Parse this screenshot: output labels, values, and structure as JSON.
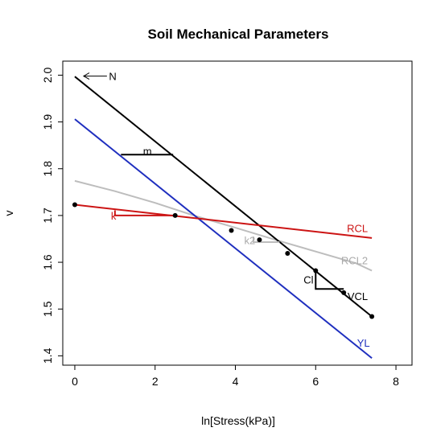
{
  "chart_data": {
    "type": "line",
    "title": "Soil Mechanical Parameters",
    "xlabel": "ln[Stress(kPa)]",
    "ylabel": "v",
    "xlim": [
      -0.3,
      8.4
    ],
    "ylim": [
      1.38,
      2.03
    ],
    "x_ticks": [
      0,
      2,
      4,
      6,
      8
    ],
    "y_ticks": [
      1.4,
      1.5,
      1.6,
      1.7,
      1.8,
      1.9,
      2.0
    ],
    "grid": false,
    "series": [
      {
        "name": "VCL",
        "color": "#000000",
        "x": [
          0,
          7.4
        ],
        "y": [
          1.997,
          1.484
        ]
      },
      {
        "name": "YL",
        "color": "#1f2fbf",
        "x": [
          0,
          7.4
        ],
        "y": [
          1.906,
          1.395
        ]
      },
      {
        "name": "RCL",
        "color": "#cc1414",
        "x": [
          0,
          7.4
        ],
        "y": [
          1.723,
          1.652
        ]
      },
      {
        "name": "RCL2",
        "color": "#bdbdbd",
        "x": [
          0,
          1,
          2,
          3,
          4,
          5,
          6,
          7,
          7.4
        ],
        "y": [
          1.774,
          1.752,
          1.727,
          1.699,
          1.674,
          1.648,
          1.623,
          1.598,
          1.582
        ]
      }
    ],
    "points": {
      "x": [
        0,
        2.5,
        3.9,
        4.6,
        5.3,
        6.0,
        6.7,
        7.4
      ],
      "y": [
        1.723,
        1.7,
        1.668,
        1.648,
        1.619,
        1.582,
        1.535,
        1.484
      ]
    },
    "annotations": [
      {
        "text": "N",
        "x": 0.85,
        "y": 1.998,
        "color": "#000000"
      },
      {
        "text": "m",
        "x": 1.7,
        "y": 1.838,
        "color": "#000000"
      },
      {
        "text": "k",
        "x": 0.9,
        "y": 1.7,
        "color": "#cc1414"
      },
      {
        "text": "k2",
        "x": 4.22,
        "y": 1.647,
        "color": "#aaaaaa"
      },
      {
        "text": "Cl",
        "x": 5.7,
        "y": 1.563,
        "color": "#000000"
      },
      {
        "text": "RCL",
        "x": 7.3,
        "y": 1.673,
        "color": "#cc1414"
      },
      {
        "text": "RCL2",
        "x": 7.3,
        "y": 1.604,
        "color": "#aaaaaa"
      },
      {
        "text": "VCL",
        "x": 7.3,
        "y": 1.528,
        "color": "#000000"
      },
      {
        "text": "YL",
        "x": 7.35,
        "y": 1.428,
        "color": "#1f2fbf"
      }
    ]
  }
}
